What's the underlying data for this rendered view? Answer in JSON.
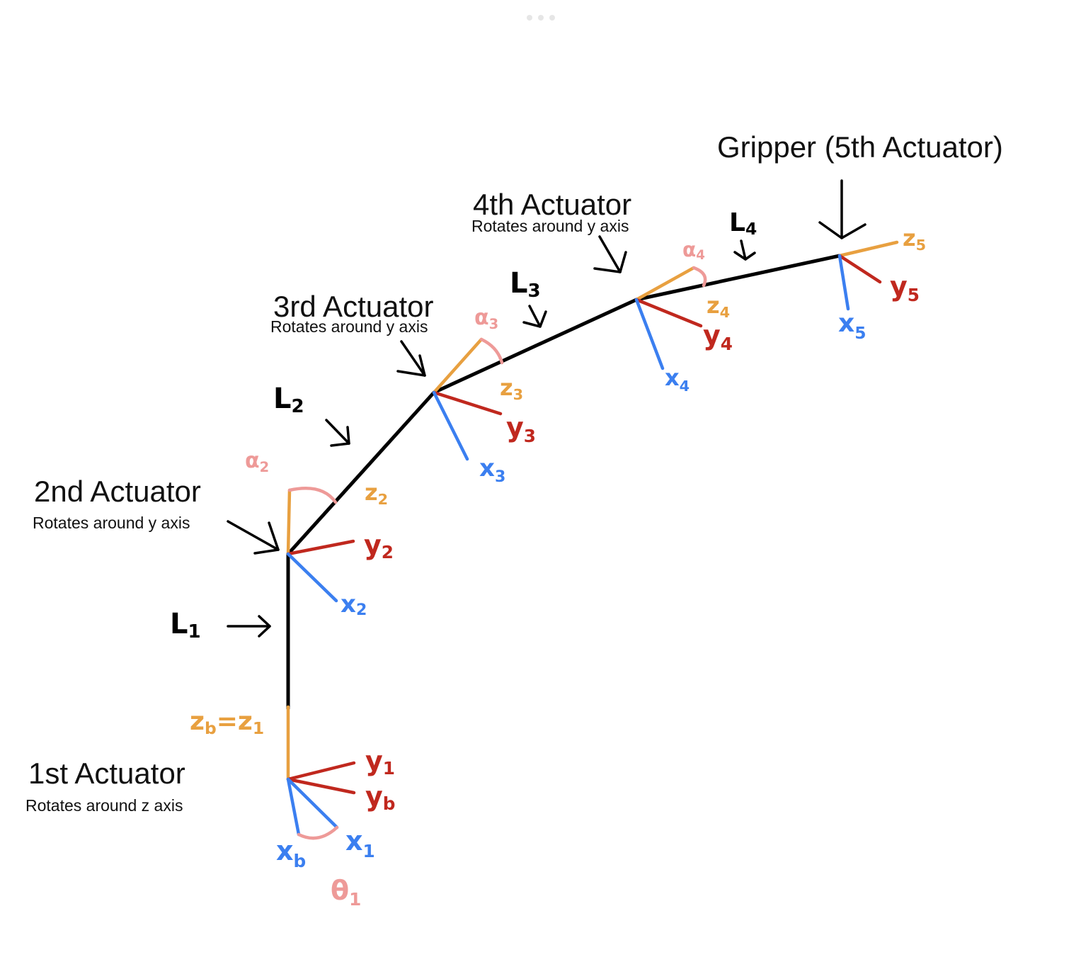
{
  "colors": {
    "link": "#000000",
    "z_axis": "#e8a040",
    "y_axis": "#c0281e",
    "x_axis": "#3b7ff0",
    "angle": "#ee9a98",
    "label_black": "#000000"
  },
  "actuators": [
    {
      "title": "1st Actuator",
      "subtitle": "Rotates around z axis"
    },
    {
      "title": "2nd Actuator",
      "subtitle": "Rotates around y axis"
    },
    {
      "title": "3rd Actuator",
      "subtitle": "Rotates around y axis"
    },
    {
      "title": "4th Actuator",
      "subtitle": "Rotates around y axis"
    },
    {
      "title": "Gripper (5th Actuator)",
      "subtitle": ""
    }
  ],
  "links": [
    {
      "base": "L",
      "sub": "1"
    },
    {
      "base": "L",
      "sub": "2"
    },
    {
      "base": "L",
      "sub": "3"
    },
    {
      "base": "L",
      "sub": "4"
    }
  ],
  "axis_labels": {
    "zb_z1": {
      "base": "z",
      "sub": "b",
      "base2": "z",
      "sub2": "1"
    },
    "y1": {
      "base": "y",
      "sub": "1"
    },
    "yb": {
      "base": "y",
      "sub": "b"
    },
    "xb": {
      "base": "x",
      "sub": "b"
    },
    "x1": {
      "base": "x",
      "sub": "1"
    },
    "theta1": {
      "base": "θ",
      "sub": "1"
    },
    "alpha2": {
      "base": "α",
      "sub": "2"
    },
    "z2": {
      "base": "z",
      "sub": "2"
    },
    "y2": {
      "base": "y",
      "sub": "2"
    },
    "x2": {
      "base": "x",
      "sub": "2"
    },
    "alpha3": {
      "base": "α",
      "sub": "3"
    },
    "z3": {
      "base": "z",
      "sub": "3"
    },
    "y3": {
      "base": "y",
      "sub": "3"
    },
    "x3": {
      "base": "x",
      "sub": "3"
    },
    "alpha4": {
      "base": "α",
      "sub": "4"
    },
    "z4": {
      "base": "z",
      "sub": "4"
    },
    "y4": {
      "base": "y",
      "sub": "4"
    },
    "x4": {
      "base": "x",
      "sub": "4"
    },
    "z5": {
      "base": "z",
      "sub": "5"
    },
    "y5": {
      "base": "y",
      "sub": "5"
    },
    "x5": {
      "base": "x",
      "sub": "5"
    }
  }
}
